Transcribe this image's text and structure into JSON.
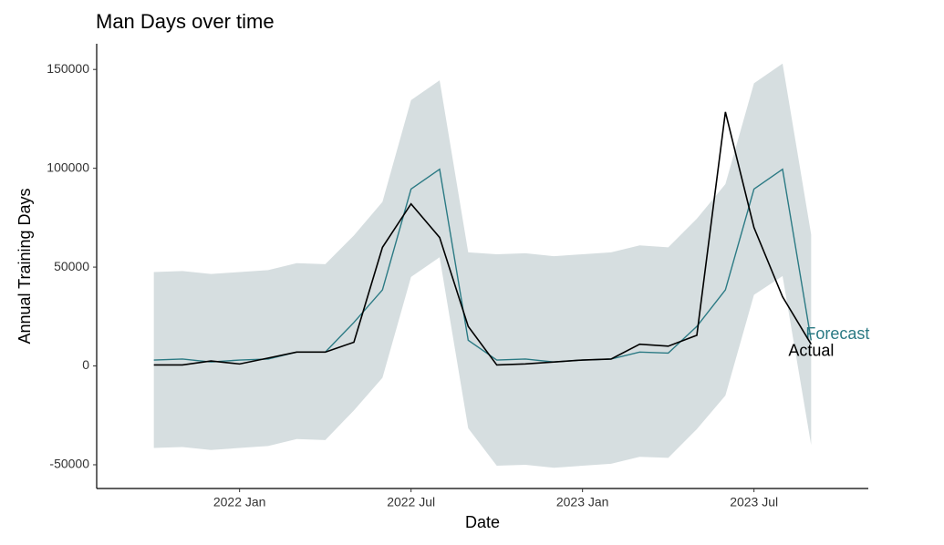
{
  "chart_data": {
    "type": "line",
    "title": "Man Days over time",
    "x_label": "Date",
    "y_label": "Annual Training Days",
    "x": [
      "2021-10",
      "2021-11",
      "2021-12",
      "2022-01",
      "2022-02",
      "2022-03",
      "2022-04",
      "2022-05",
      "2022-06",
      "2022-07",
      "2022-08",
      "2022-09",
      "2022-10",
      "2022-11",
      "2022-12",
      "2023-01",
      "2023-02",
      "2023-03",
      "2023-04",
      "2023-05",
      "2023-06",
      "2023-07",
      "2023-08",
      "2023-09"
    ],
    "band": {
      "color": "#d6dee0",
      "upper": [
        47500,
        48000,
        46500,
        47500,
        48500,
        52000,
        51500,
        66000,
        83000,
        134500,
        144500,
        57500,
        56500,
        57000,
        55500,
        56500,
        57500,
        61000,
        60000,
        74500,
        92000,
        143000,
        153000,
        66500
      ],
      "lower": [
        -41500,
        -41000,
        -42500,
        -41500,
        -40500,
        -37000,
        -37500,
        -22500,
        -6000,
        45000,
        55000,
        -31500,
        -50500,
        -50000,
        -51500,
        -50500,
        -49500,
        -46000,
        -46500,
        -32000,
        -15000,
        36000,
        45500,
        -40000
      ]
    },
    "series": [
      {
        "name": "Forecast",
        "color": "#2b7a84",
        "values": [
          3000,
          3500,
          2000,
          3000,
          3500,
          7000,
          7000,
          22000,
          38500,
          89500,
          99500,
          13000,
          3000,
          3500,
          2000,
          3000,
          3500,
          7000,
          6500,
          20000,
          38500,
          89500,
          99500,
          13000
        ]
      },
      {
        "name": "Actual",
        "color": "#000000",
        "values": [
          500,
          500,
          2500,
          1000,
          4000,
          7000,
          7000,
          12000,
          60000,
          82000,
          65000,
          20000,
          500,
          1000,
          2000,
          3000,
          3500,
          11000,
          10000,
          15500,
          128500,
          70000,
          35000,
          11000
        ]
      }
    ],
    "xlim": [
      "2021-08",
      "2023-11"
    ],
    "xticks": [
      {
        "value": "2022-01",
        "label": "2022 Jan"
      },
      {
        "value": "2022-07",
        "label": "2022 Jul"
      },
      {
        "value": "2023-01",
        "label": "2023 Jan"
      },
      {
        "value": "2023-07",
        "label": "2023 Jul"
      }
    ],
    "ylim": [
      -62000,
      163000
    ],
    "yticks": [
      -50000,
      0,
      50000,
      100000,
      150000
    ]
  }
}
